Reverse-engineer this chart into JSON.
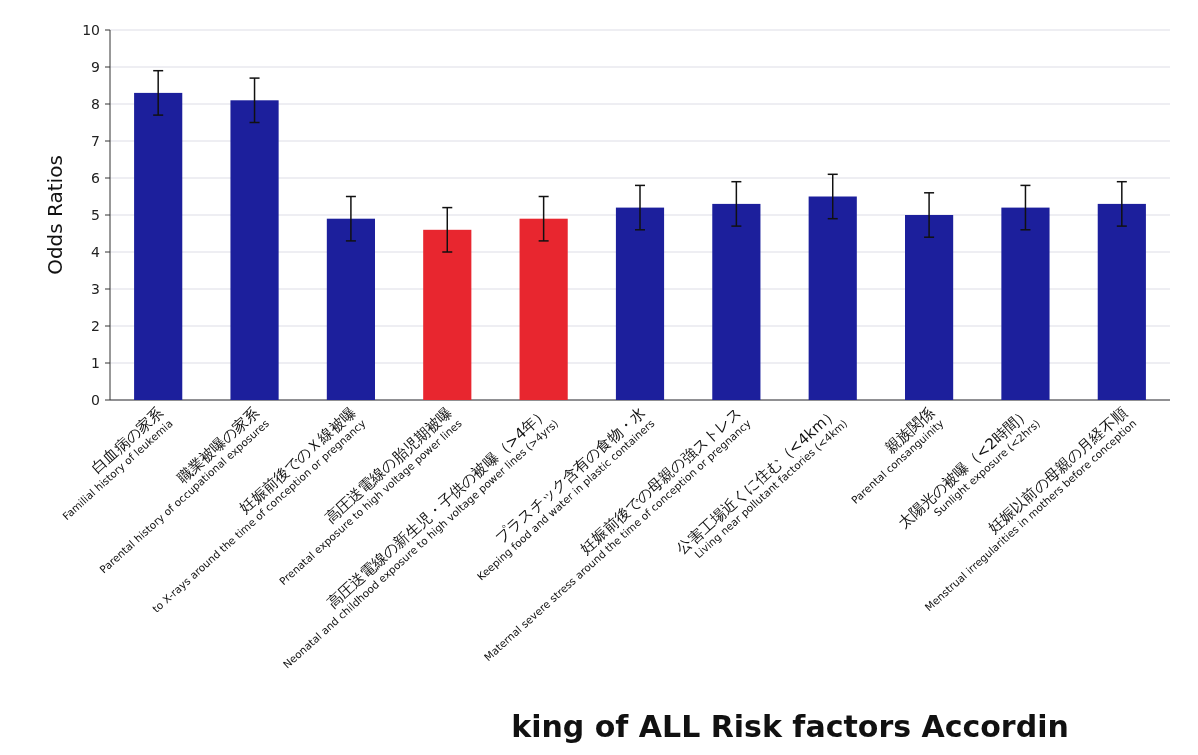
{
  "chart_data": {
    "type": "bar",
    "ylabel": "Odds Ratios",
    "categories": [
      "白血病の家系\nFamilial history of leukemia",
      "職業被曝の家系\nParental history of occupational exposures",
      "妊娠前後でのＸ線被曝\nto X-rays around the time of conception or pregnancy",
      "高圧送電線の胎児期被曝\nPrenatal exposure to high voltage power lines",
      "高圧送電線の新生児・子供の被曝（>4年）\nNeonatal and childhood exposure to high voltage power lines (>4yrs)",
      "プラスチック含有の食物・水\nKeeping food and water in plastic containers",
      "妊娠前後での母親の強ストレス\nMaternal severe stress around the time of conception or pregnancy",
      "公害工場近くに住む（<4km）\nLiving near pollutant factories (<4km)",
      "親族関係\nParental consanguinity",
      "太陽光の被曝（<2時間）\nSunlight exposure (<2hrs)",
      "妊娠以前の母親の月経不順\nMenstrual irregularities in mothers before conception"
    ],
    "values": [
      8.3,
      8.1,
      4.9,
      4.6,
      4.9,
      5.2,
      5.3,
      5.5,
      5.0,
      5.2,
      5.3
    ],
    "errors": [
      0.6,
      0.6,
      0.6,
      0.6,
      0.6,
      0.6,
      0.6,
      0.6,
      0.6,
      0.6,
      0.6
    ],
    "colors": [
      "#1c1f9c",
      "#1c1f9c",
      "#1c1f9c",
      "#e8262f",
      "#e8262f",
      "#1c1f9c",
      "#1c1f9c",
      "#1c1f9c",
      "#1c1f9c",
      "#1c1f9c",
      "#1c1f9c"
    ],
    "ylim": [
      0,
      10
    ],
    "yticks": [
      0,
      1,
      2,
      3,
      4,
      5,
      6,
      7,
      8,
      9,
      10
    ],
    "grid": "y",
    "annotations": [
      "king of ALL Risk factors Accordin"
    ]
  }
}
